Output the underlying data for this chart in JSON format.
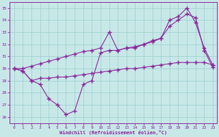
{
  "xlabel": "Windchill (Refroidissement éolien,°C)",
  "bg_color": "#c8e8e8",
  "grid_color": "#99cccc",
  "line_color": "#882299",
  "ylim": [
    25.5,
    35.5
  ],
  "xlim": [
    -0.5,
    23.5
  ],
  "yticks": [
    26,
    27,
    28,
    29,
    30,
    31,
    32,
    33,
    34,
    35
  ],
  "xticks": [
    0,
    1,
    2,
    3,
    4,
    5,
    6,
    7,
    8,
    9,
    10,
    11,
    12,
    13,
    14,
    15,
    16,
    17,
    18,
    19,
    20,
    21,
    22,
    23
  ],
  "line1_x": [
    0,
    1,
    2,
    3,
    4,
    5,
    6,
    7,
    8,
    9,
    10,
    11,
    12,
    13,
    14,
    15,
    16,
    17,
    18,
    19,
    20,
    21,
    22,
    23
  ],
  "line1_y": [
    30.0,
    29.8,
    29.0,
    28.7,
    27.5,
    27.0,
    26.2,
    26.5,
    28.7,
    29.0,
    31.3,
    31.5,
    31.5,
    31.7,
    31.7,
    32.0,
    32.3,
    32.5,
    34.0,
    34.3,
    35.0,
    33.8,
    31.7,
    30.3
  ],
  "line2_x": [
    0,
    1,
    2,
    3,
    4,
    5,
    6,
    7,
    8,
    9,
    10,
    11,
    12,
    13,
    14,
    15,
    16,
    17,
    18,
    19,
    20,
    21,
    22,
    23
  ],
  "line2_y": [
    30.0,
    30.0,
    30.2,
    30.4,
    30.6,
    30.8,
    31.0,
    31.2,
    31.4,
    31.5,
    31.7,
    33.0,
    31.5,
    31.7,
    31.8,
    32.0,
    32.2,
    32.5,
    33.5,
    34.0,
    34.5,
    34.2,
    31.5,
    30.1
  ],
  "line3_x": [
    0,
    1,
    2,
    3,
    4,
    5,
    6,
    7,
    8,
    9,
    10,
    11,
    12,
    13,
    14,
    15,
    16,
    17,
    18,
    19,
    20,
    21,
    22,
    23
  ],
  "line3_y": [
    30.0,
    29.8,
    29.0,
    29.2,
    29.2,
    29.3,
    29.3,
    29.4,
    29.5,
    29.6,
    29.7,
    29.8,
    29.9,
    30.0,
    30.0,
    30.1,
    30.2,
    30.3,
    30.4,
    30.5,
    30.5,
    30.5,
    30.5,
    30.3
  ]
}
